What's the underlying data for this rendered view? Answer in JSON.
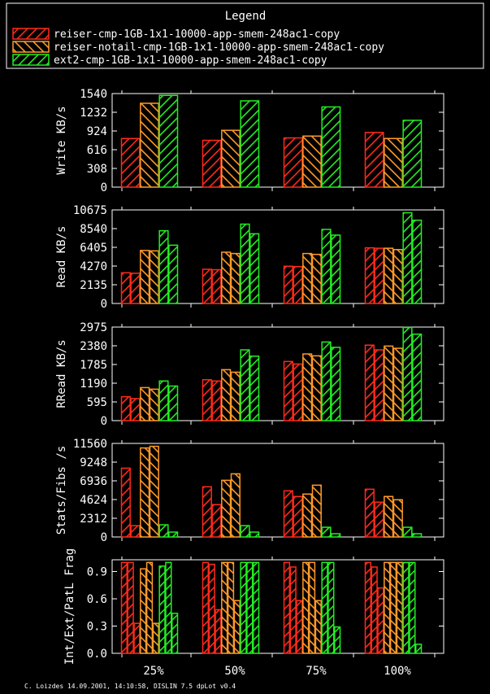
{
  "colors": {
    "background": "#000000",
    "foreground": "#ffffff",
    "series": [
      "#ff2a1a",
      "#ff9a2a",
      "#22ee22"
    ]
  },
  "legend": {
    "title": "Legend",
    "entries": [
      "reiser-cmp-1GB-1x1-10000-app-smem-248ac1-copy",
      "reiser-notail-cmp-1GB-1x1-10000-app-smem-248ac1-copy",
      "ext2-cmp-1GB-1x1-10000-app-smem-248ac1-copy"
    ]
  },
  "footer": "C. Loizdes 14.09.2001, 14:10:58, DISLIN 7.5 dpLot v0.4",
  "chart_data": [
    {
      "type": "bar",
      "ylabel": "Write KB/s",
      "ylim": [
        0,
        1540
      ],
      "yticks": [
        "0",
        "308",
        "616",
        "924",
        "1232",
        "1540"
      ],
      "categories": [
        "25%",
        "50%",
        "75%",
        "100%"
      ],
      "bars_per_series": 1,
      "series": [
        {
          "name": "reiser-cmp-1GB-1x1-10000-app-smem-248ac1-copy",
          "values": [
            [
              800
            ],
            [
              770
            ],
            [
              810
            ],
            [
              900
            ]
          ]
        },
        {
          "name": "reiser-notail-cmp-1GB-1x1-10000-app-smem-248ac1-copy",
          "values": [
            [
              1380
            ],
            [
              935
            ],
            [
              840
            ],
            [
              800
            ]
          ]
        },
        {
          "name": "ext2-cmp-1GB-1x1-10000-app-smem-248ac1-copy",
          "values": [
            [
              1510
            ],
            [
              1420
            ],
            [
              1320
            ],
            [
              1100
            ]
          ]
        }
      ]
    },
    {
      "type": "bar",
      "ylabel": "Read KB/s",
      "ylim": [
        0,
        10675
      ],
      "yticks": [
        "0",
        "2135",
        "4270",
        "6405",
        "8540",
        "10675"
      ],
      "categories": [
        "25%",
        "50%",
        "75%",
        "100%"
      ],
      "bars_per_series": 2,
      "series": [
        {
          "name": "reiser-cmp-1GB-1x1-10000-app-smem-248ac1-copy",
          "values": [
            [
              3500,
              3450
            ],
            [
              3900,
              3850
            ],
            [
              4250,
              4200
            ],
            [
              6350,
              6300
            ]
          ]
        },
        {
          "name": "reiser-notail-cmp-1GB-1x1-10000-app-smem-248ac1-copy",
          "values": [
            [
              6050,
              6000
            ],
            [
              5850,
              5700
            ],
            [
              5700,
              5600
            ],
            [
              6300,
              6150
            ]
          ]
        },
        {
          "name": "ext2-cmp-1GB-1x1-10000-app-smem-248ac1-copy",
          "values": [
            [
              8300,
              6650
            ],
            [
              9050,
              7950
            ],
            [
              8450,
              7800
            ],
            [
              10350,
              9500
            ]
          ]
        }
      ]
    },
    {
      "type": "bar",
      "ylabel": "RRead KB/s",
      "ylim": [
        0,
        2975
      ],
      "yticks": [
        "0",
        "595",
        "1190",
        "1785",
        "2380",
        "2975"
      ],
      "categories": [
        "25%",
        "50%",
        "75%",
        "100%"
      ],
      "bars_per_series": 2,
      "series": [
        {
          "name": "reiser-cmp-1GB-1x1-10000-app-smem-248ac1-copy",
          "values": [
            [
              760,
              700
            ],
            [
              1300,
              1260
            ],
            [
              1880,
              1800
            ],
            [
              2400,
              2250
            ]
          ]
        },
        {
          "name": "reiser-notail-cmp-1GB-1x1-10000-app-smem-248ac1-copy",
          "values": [
            [
              1050,
              1000
            ],
            [
              1620,
              1540
            ],
            [
              2120,
              2060
            ],
            [
              2370,
              2300
            ]
          ]
        },
        {
          "name": "ext2-cmp-1GB-1x1-10000-app-smem-248ac1-copy",
          "values": [
            [
              1260,
              1100
            ],
            [
              2250,
              2050
            ],
            [
              2500,
              2330
            ],
            [
              2960,
              2750
            ]
          ]
        }
      ]
    },
    {
      "type": "bar",
      "ylabel": "Stats/Fibs /s",
      "ylim": [
        0,
        11560
      ],
      "yticks": [
        "0",
        "2312",
        "4624",
        "6936",
        "9248",
        "11560"
      ],
      "categories": [
        "25%",
        "50%",
        "75%",
        "100%"
      ],
      "bars_per_series": 2,
      "series": [
        {
          "name": "reiser-cmp-1GB-1x1-10000-app-smem-248ac1-copy",
          "values": [
            [
              8500,
              1400
            ],
            [
              6200,
              4000
            ],
            [
              5700,
              5000
            ],
            [
              5900,
              4300
            ]
          ]
        },
        {
          "name": "reiser-notail-cmp-1GB-1x1-10000-app-smem-248ac1-copy",
          "values": [
            [
              11000,
              11200
            ],
            [
              7000,
              7800
            ],
            [
              5300,
              6400
            ],
            [
              5000,
              4600
            ]
          ]
        },
        {
          "name": "ext2-cmp-1GB-1x1-10000-app-smem-248ac1-copy",
          "values": [
            [
              1500,
              600
            ],
            [
              1400,
              600
            ],
            [
              1200,
              400
            ],
            [
              1200,
              400
            ]
          ]
        }
      ]
    },
    {
      "type": "bar",
      "ylabel": "Int/Ext/PatL Frag",
      "ylim": [
        0,
        1.03
      ],
      "yticks": [
        "0.0",
        "0.3",
        "0.6",
        "0.9"
      ],
      "categories": [
        "25%",
        "50%",
        "75%",
        "100%"
      ],
      "bars_per_series": 3,
      "series": [
        {
          "name": "reiser-cmp-1GB-1x1-10000-app-smem-248ac1-copy",
          "values": [
            [
              1.0,
              1.0,
              0.33
            ],
            [
              1.0,
              0.98,
              0.48
            ],
            [
              1.0,
              0.95,
              0.58
            ],
            [
              1.0,
              0.95,
              0.72
            ]
          ]
        },
        {
          "name": "reiser-notail-cmp-1GB-1x1-10000-app-smem-248ac1-copy",
          "values": [
            [
              0.93,
              1.0,
              0.33
            ],
            [
              1.0,
              1.0,
              0.58
            ],
            [
              1.0,
              1.0,
              0.58
            ],
            [
              1.0,
              1.0,
              1.0
            ]
          ]
        },
        {
          "name": "ext2-cmp-1GB-1x1-10000-app-smem-248ac1-copy",
          "values": [
            [
              0.96,
              1.0,
              0.44
            ],
            [
              1.0,
              1.0,
              1.0
            ],
            [
              1.0,
              1.0,
              0.29
            ],
            [
              1.0,
              1.0,
              0.1
            ]
          ]
        }
      ]
    }
  ]
}
